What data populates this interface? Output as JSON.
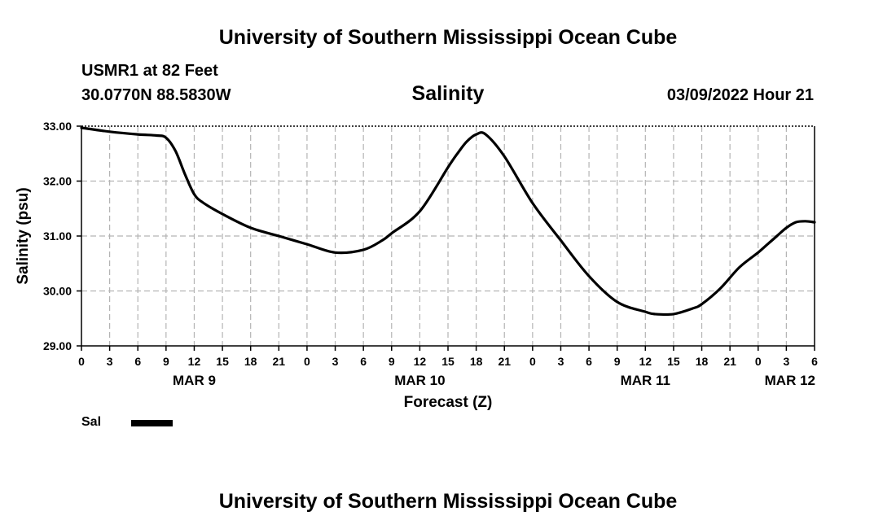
{
  "header": {
    "title": "University of Southern Mississippi Ocean Cube",
    "station": "USMR1 at 82 Feet",
    "coords": "30.0770N  88.5830W",
    "datetime": "03/09/2022 Hour 21"
  },
  "footer": {
    "title": "University of Southern Mississippi Ocean Cube"
  },
  "legend": {
    "label": "Sal"
  },
  "chart_data": {
    "type": "line",
    "title": "Salinity",
    "xlabel": "Forecast (Z)",
    "ylabel": "Salinity (psu)",
    "ylim": [
      29.0,
      33.0
    ],
    "y_ticks": [
      "29.00",
      "30.00",
      "31.00",
      "32.00",
      "33.00"
    ],
    "x_range_hours": [
      0,
      78
    ],
    "x_tick_labels": [
      "0",
      "3",
      "6",
      "9",
      "12",
      "15",
      "18",
      "21",
      "0",
      "3",
      "6",
      "9",
      "12",
      "15",
      "18",
      "21",
      "0",
      "3",
      "6",
      "9",
      "12",
      "15",
      "18",
      "21",
      "0",
      "3",
      "6"
    ],
    "date_labels": [
      {
        "label": "MAR 9",
        "hour": 12
      },
      {
        "label": "MAR 10",
        "hour": 36
      },
      {
        "label": "MAR 11",
        "hour": 60
      },
      {
        "label": "MAR 12",
        "hour": 78
      }
    ],
    "grid": true,
    "series": [
      {
        "name": "Sal",
        "color": "#000000",
        "x": [
          0,
          3,
          6,
          8,
          9,
          10,
          11,
          12,
          13,
          15,
          18,
          21,
          24,
          27,
          30,
          32,
          33,
          36,
          39,
          40,
          41,
          42,
          43,
          45,
          48,
          51,
          54,
          57,
          60,
          61,
          63,
          65,
          66,
          68,
          70,
          72,
          73,
          74,
          75,
          76,
          77,
          78
        ],
        "values": [
          32.97,
          32.9,
          32.85,
          32.83,
          32.79,
          32.55,
          32.13,
          31.76,
          31.6,
          31.4,
          31.15,
          31.0,
          30.85,
          30.7,
          30.75,
          30.92,
          31.05,
          31.45,
          32.25,
          32.5,
          32.72,
          32.85,
          32.85,
          32.45,
          31.6,
          30.92,
          30.27,
          29.8,
          29.62,
          29.58,
          29.58,
          29.68,
          29.76,
          30.05,
          30.43,
          30.7,
          30.85,
          31.0,
          31.15,
          31.25,
          31.27,
          31.25
        ]
      }
    ]
  }
}
